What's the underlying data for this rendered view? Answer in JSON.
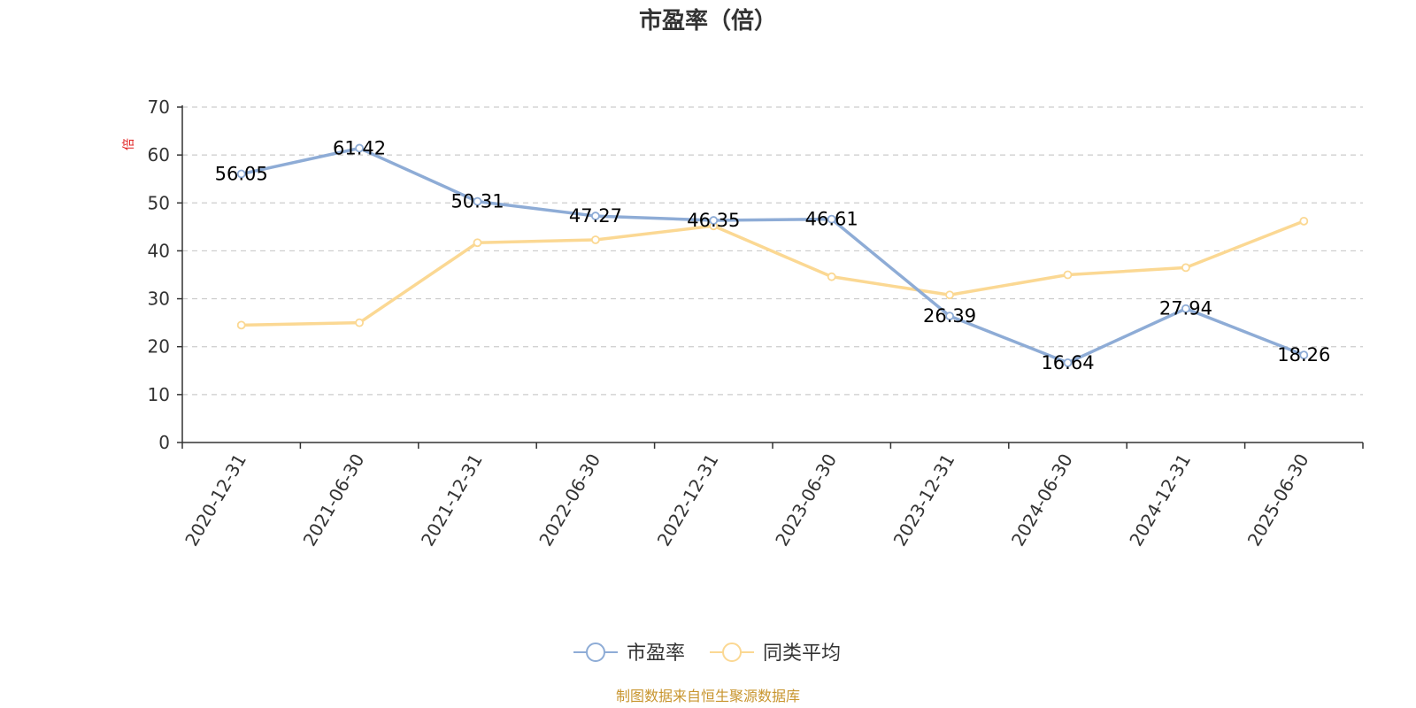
{
  "chart_data": {
    "type": "line",
    "title": "市盈率（倍）",
    "ylabel": "倍",
    "ylim": [
      0,
      70
    ],
    "yticks": [
      0,
      10,
      20,
      30,
      40,
      50,
      60,
      70
    ],
    "grid": true,
    "legend_position": "bottom-center",
    "categories": [
      "2020-12-31",
      "2021-06-30",
      "2021-12-31",
      "2022-06-30",
      "2022-12-31",
      "2023-06-30",
      "2023-12-31",
      "2024-06-30",
      "2024-12-31",
      "2025-06-30"
    ],
    "series": [
      {
        "name": "市盈率",
        "color": "#8eacd6",
        "values": [
          56.05,
          61.42,
          50.31,
          47.27,
          46.35,
          46.61,
          26.39,
          16.64,
          27.94,
          18.26
        ],
        "data_labels": [
          "56.05",
          "61.42",
          "50.31",
          "47.27",
          "46.35",
          "46.61",
          "26.39",
          "16.64",
          "27.94",
          "18.26"
        ]
      },
      {
        "name": "同类平均",
        "color": "#fbd893",
        "values": [
          24.5,
          25.0,
          41.7,
          42.3,
          45.2,
          34.6,
          30.8,
          35.0,
          36.5,
          46.2
        ]
      }
    ],
    "source": "制图数据来自恒生聚源数据库"
  }
}
